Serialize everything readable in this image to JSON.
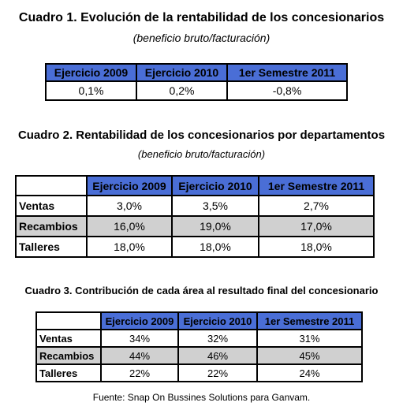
{
  "cuadro1": {
    "title": "Cuadro 1. Evolución de la rentabilidad de los concesionarios",
    "subtitle": "(beneficio bruto/facturación)",
    "headers": [
      "Ejercicio 2009",
      "Ejercicio 2010",
      "1er Semestre 2011"
    ],
    "values": [
      "0,1%",
      "0,2%",
      "-0,8%"
    ]
  },
  "cuadro2": {
    "title": "Cuadro 2. Rentabilidad de los concesionarios por departamentos",
    "subtitle": "(beneficio bruto/facturación)",
    "headers": [
      "Ejercicio 2009",
      "Ejercicio 2010",
      "1er Semestre 2011"
    ],
    "rows": [
      {
        "label": "Ventas",
        "values": [
          "3,0%",
          "3,5%",
          "2,7%"
        ]
      },
      {
        "label": "Recambios",
        "values": [
          "16,0%",
          "19,0%",
          "17,0%"
        ]
      },
      {
        "label": "Talleres",
        "values": [
          "18,0%",
          "18,0%",
          "18,0%"
        ]
      }
    ]
  },
  "cuadro3": {
    "title": "Cuadro 3. Contribución de cada área al resultado final del concesionario",
    "headers": [
      "Ejercicio 2009",
      "Ejercicio 2010",
      "1er Semestre 2011"
    ],
    "rows": [
      {
        "label": "Ventas",
        "values": [
          "34%",
          "32%",
          "31%"
        ]
      },
      {
        "label": "Recambios",
        "values": [
          "44%",
          "46%",
          "45%"
        ]
      },
      {
        "label": "Talleres",
        "values": [
          "22%",
          "22%",
          "24%"
        ]
      }
    ]
  },
  "source": "Fuente: Snap On Bussines Solutions para Ganvam.",
  "colors": {
    "header_fill": "#4a6ed6",
    "shaded_row": "#d0d0d0"
  }
}
